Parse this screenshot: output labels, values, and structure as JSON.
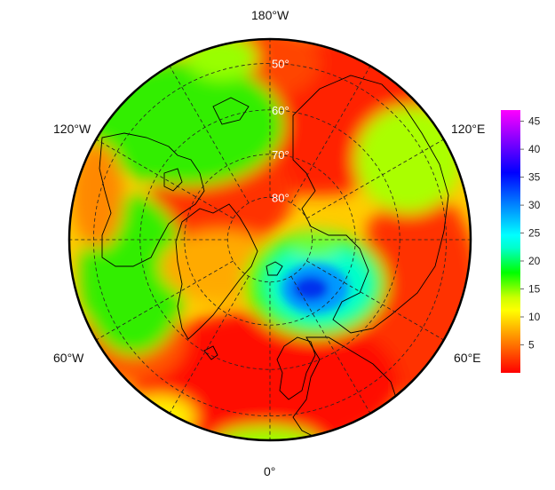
{
  "map": {
    "projection": "north-polar-stereographic",
    "longitude_labels": {
      "top": "180°W",
      "bottom": "0°",
      "upper_left": "120°W",
      "upper_right": "120°E",
      "lower_left": "60°W",
      "lower_right": "60°E"
    },
    "latitude_labels": [
      "50°",
      "60°",
      "70°",
      "80°"
    ],
    "latitude_circles": [
      50,
      60,
      70,
      80
    ],
    "meridian_spacing_deg": 30,
    "gridlines": "dashed"
  },
  "colorbar": {
    "ticks": [
      "5",
      "10",
      "15",
      "20",
      "25",
      "30",
      "35",
      "40",
      "45"
    ],
    "min": 0,
    "max": 47,
    "colors": [
      "#ff0000",
      "#ff3300",
      "#ff6600",
      "#ff9900",
      "#ffcc00",
      "#ffff00",
      "#ccff00",
      "#66ff00",
      "#00ff00",
      "#00ff66",
      "#00ffcc",
      "#00ffff",
      "#00ccff",
      "#0099ff",
      "#0066ff",
      "#0033ff",
      "#0000ff",
      "#3300ff",
      "#6600ff",
      "#9900ff",
      "#cc00ff",
      "#ff00ff"
    ]
  }
}
